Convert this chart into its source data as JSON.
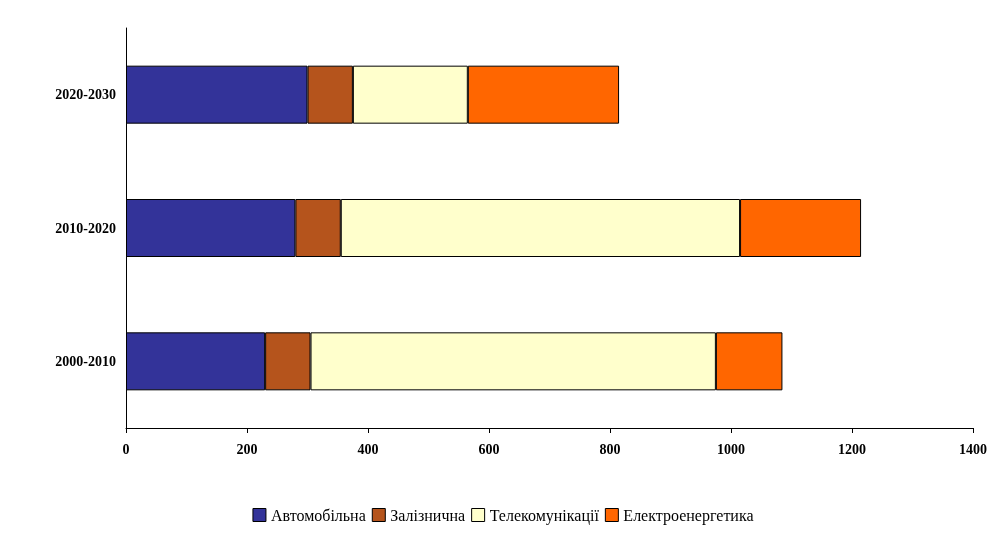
{
  "chart_data": {
    "type": "bar",
    "orientation": "horizontal",
    "stacked": true,
    "categories": [
      "2020-2030",
      "2010-2020",
      "2000-2010"
    ],
    "series": [
      {
        "name": "Автомобільна",
        "color": "#333399",
        "values": [
          300,
          280,
          230
        ]
      },
      {
        "name": "Залізнична",
        "color": "#b5541c",
        "values": [
          75,
          75,
          75
        ]
      },
      {
        "name": "Телекомунікації",
        "color": "#ffffcc",
        "values": [
          190,
          660,
          670
        ]
      },
      {
        "name": "Електроенергетика",
        "color": "#ff6600",
        "values": [
          250,
          200,
          110
        ]
      }
    ],
    "xlim": [
      0,
      1400
    ],
    "xticks": [
      0,
      200,
      400,
      600,
      800,
      1000,
      1200,
      1400
    ],
    "grid": false,
    "legend": "bottom"
  }
}
